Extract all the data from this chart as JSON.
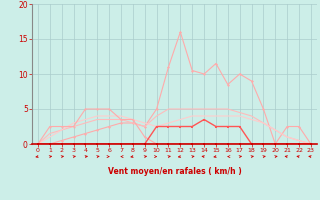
{
  "xlabel": "Vent moyen/en rafales ( km/h )",
  "xlim": [
    -0.5,
    23.5
  ],
  "ylim": [
    0,
    20
  ],
  "yticks": [
    0,
    5,
    10,
    15,
    20
  ],
  "xticks": [
    0,
    1,
    2,
    3,
    4,
    5,
    6,
    7,
    8,
    9,
    10,
    11,
    12,
    13,
    14,
    15,
    16,
    17,
    18,
    19,
    20,
    21,
    22,
    23
  ],
  "bg_color": "#cceee8",
  "grid_color": "#aacccc",
  "x": [
    0,
    1,
    2,
    3,
    4,
    5,
    6,
    7,
    8,
    9,
    10,
    11,
    12,
    13,
    14,
    15,
    16,
    17,
    18,
    19,
    20,
    21,
    22,
    23
  ],
  "line_peak_y": [
    0,
    0,
    0.5,
    1,
    1.5,
    2,
    2.5,
    3,
    3,
    2.5,
    5,
    11,
    16,
    10.5,
    10,
    11.5,
    8.5,
    10,
    9,
    5,
    0,
    2.5,
    2.5,
    0
  ],
  "line_mid1_y": [
    0,
    1.5,
    2,
    2.5,
    3,
    3.5,
    3.5,
    3.5,
    3,
    2.5,
    4,
    5,
    5,
    5,
    5,
    5,
    5,
    4.5,
    4,
    3,
    2,
    1,
    0.5,
    0
  ],
  "line_mid2_y": [
    0,
    1,
    2,
    3,
    3.5,
    4,
    4,
    4,
    3.5,
    3,
    2.5,
    3,
    3.5,
    4,
    4,
    4,
    4,
    4,
    3.5,
    3,
    2,
    1,
    0.5,
    0
  ],
  "line_step_y": [
    0,
    2.5,
    2.5,
    2.5,
    5,
    5,
    5,
    3.5,
    3.5,
    1,
    0,
    0,
    0,
    0,
    0,
    0,
    0,
    0,
    0,
    0,
    0,
    0,
    0,
    0
  ],
  "line_med_y": [
    0,
    0,
    0,
    0,
    0,
    0,
    0,
    0,
    0,
    0,
    2.5,
    2.5,
    2.5,
    2.5,
    3.5,
    2.5,
    2.5,
    2.5,
    0,
    0,
    0,
    0,
    0,
    0
  ],
  "line_bot_y": [
    0,
    0,
    0,
    0,
    0,
    0,
    0,
    0,
    0,
    0,
    0,
    0,
    0,
    0,
    0,
    0,
    0,
    0,
    0,
    0,
    0,
    0,
    0,
    0
  ],
  "color_peak": "#ffaaaa",
  "color_mid1": "#ffbbbb",
  "color_mid2": "#ffcccc",
  "color_step": "#ffaaaa",
  "color_med": "#ff5555",
  "color_bot": "#cc0000",
  "color_axis": "#cc0000",
  "color_spine_left": "#888888"
}
